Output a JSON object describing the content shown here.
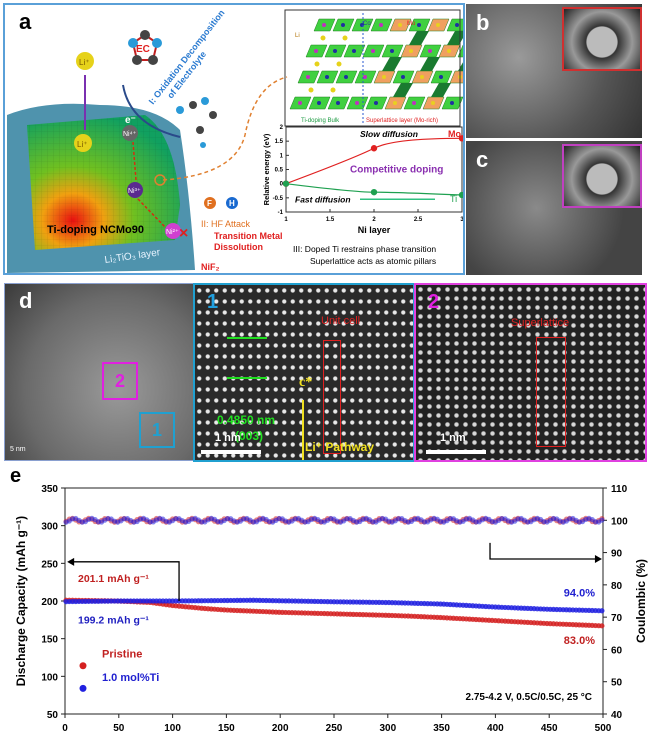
{
  "panel_labels": {
    "a": "a",
    "b": "b",
    "c": "c",
    "d": "d",
    "e": "e"
  },
  "panel_a": {
    "ec": "EC",
    "oxidation_line1": "I: Oxidation Decomposition",
    "oxidation_line2": "of Electrolyte",
    "electron": "e⁻",
    "li": "Li⁺",
    "ni_top": "Ni⁴⁺",
    "ni_mid": "Ni³⁺",
    "ni_bottom": "Ni²⁺",
    "f": "F",
    "h": "H",
    "hf_attack": "II: HF Attack",
    "tm_line1": "Transition Metal",
    "tm_line2": "Dissolution",
    "nif2": "NiF₂",
    "particle": "Ti-doping NCMo90",
    "layer": "Li₂TiO₃ layer",
    "structure": {
      "li": "Li",
      "ti": "Ti",
      "co": "Co",
      "mo": "Mo",
      "bulk": "Ti-doping Bulk",
      "superlattice": "Superlattice layer (Mo-rich)"
    },
    "caption_line1": "III: Doped Ti restrains phase transition",
    "caption_line2": "Superlattice acts as atomic pillars"
  },
  "energy_chart": {
    "type": "line",
    "xlabel": "Ni layer",
    "ylabel": "Relative energy (eV)",
    "xlim": [
      1,
      3
    ],
    "ylim": [
      -1,
      2
    ],
    "xticks": [
      "1",
      "1.5",
      "2",
      "2.5",
      "3"
    ],
    "yticks": [
      "-1",
      "-0.5",
      "0",
      "0.5",
      "1",
      "1.5",
      "2"
    ],
    "series": [
      {
        "name": "Mo",
        "color": "#e02020",
        "x": [
          1,
          2,
          3
        ],
        "y": [
          0,
          1.25,
          1.6
        ]
      },
      {
        "name": "Ti",
        "color": "#1fa050",
        "x": [
          1,
          2,
          3
        ],
        "y": [
          0,
          -0.3,
          -0.4
        ]
      }
    ],
    "annotations": {
      "slow": "Slow diffusion",
      "fast": "Fast diffusion",
      "competitive": "Competitive doping"
    }
  },
  "panel_d": {
    "box1": "1",
    "box2": "2",
    "scale_overview": "5 nm",
    "scale": "1 nm",
    "spacing": "0.4850 nm",
    "plane": "(003)",
    "unit_cell": "Unit cell",
    "c_axis": "c*",
    "pathway": "Li⁺ Pathway",
    "superlattice": "Superlattice"
  },
  "chart_data": {
    "type": "scatter",
    "xlabel": "Cycle Number",
    "ylabel": "Discharge Capacity (mAh g⁻¹)",
    "y2label": "Coulombic (%)",
    "xlim": [
      0,
      500
    ],
    "ylim": [
      50,
      350
    ],
    "y2lim": [
      40,
      110
    ],
    "xticks": [
      "0",
      "50",
      "100",
      "150",
      "200",
      "250",
      "300",
      "350",
      "400",
      "450",
      "500"
    ],
    "yticks": [
      "50",
      "100",
      "150",
      "200",
      "250",
      "300",
      "350"
    ],
    "y2ticks": [
      "40",
      "50",
      "60",
      "70",
      "80",
      "90",
      "100",
      "110"
    ],
    "series": [
      {
        "name": "Pristine",
        "color": "#d42020",
        "axis": "left",
        "x": [
          1,
          50,
          80,
          100,
          130,
          150,
          200,
          250,
          300,
          320,
          350,
          400,
          450,
          500
        ],
        "y": [
          201.1,
          200,
          198,
          194,
          190,
          188,
          185,
          183,
          181,
          180,
          178,
          174,
          170,
          167
        ]
      },
      {
        "name": "1.0 mol%Ti",
        "color": "#2020e0",
        "axis": "left",
        "x": [
          1,
          50,
          100,
          175,
          250,
          300,
          350,
          400,
          450,
          500
        ],
        "y": [
          199.2,
          200,
          200,
          201,
          199,
          198,
          196,
          192,
          189,
          187
        ]
      },
      {
        "name": "Pristine CE",
        "color": "#d42020",
        "axis": "right",
        "x": [
          1,
          500
        ],
        "y": [
          100,
          100
        ]
      },
      {
        "name": "1.0 mol%Ti CE",
        "color": "#2020e0",
        "axis": "right",
        "x": [
          1,
          500
        ],
        "y": [
          100,
          100
        ]
      }
    ],
    "annotations": {
      "pristine_initial": "201.1 mAh g⁻¹",
      "ti_initial": "199.2 mAh g⁻¹",
      "ti_retention": "94.0%",
      "pristine_retention": "83.0%",
      "conditions": "2.75-4.2 V, 0.5C/0.5C, 25 °C"
    },
    "legend_placement": "bottom-left"
  }
}
